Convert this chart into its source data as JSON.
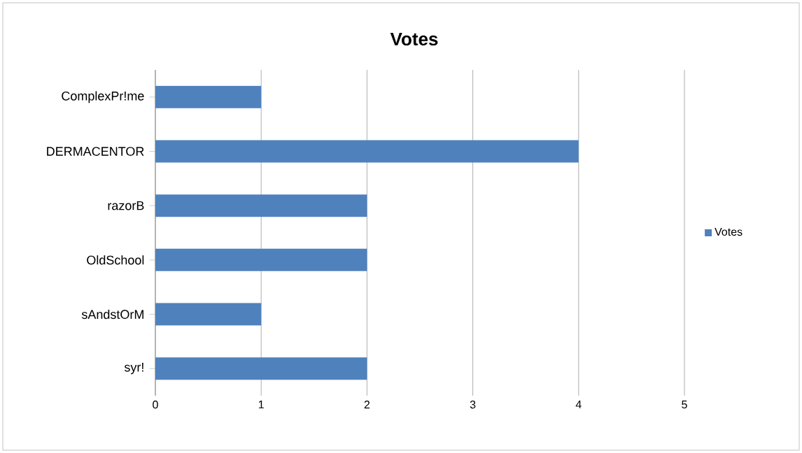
{
  "chart_data": {
    "type": "bar",
    "orientation": "horizontal",
    "title": "Votes",
    "categories": [
      "ComplexPr!me",
      "DERMACENTOR",
      "razorB",
      "OldSchool",
      "sAndstOrM",
      "syr!"
    ],
    "series": [
      {
        "name": "Votes",
        "color": "#4f81bd",
        "values": [
          1,
          4,
          2,
          2,
          1,
          2
        ]
      }
    ],
    "xlim": [
      0,
      5
    ],
    "xticks": [
      0,
      1,
      2,
      3,
      4,
      5
    ],
    "grid": "x",
    "legend": "right"
  }
}
